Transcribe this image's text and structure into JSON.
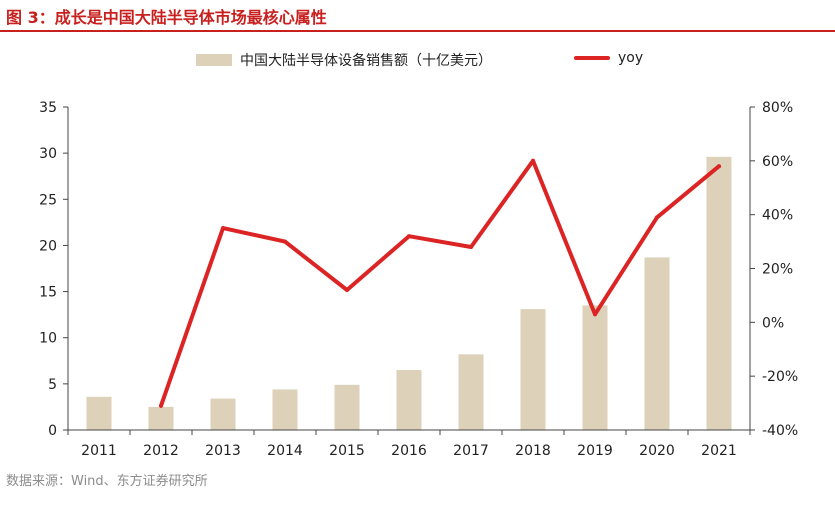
{
  "figure": {
    "title": "图 3：成长是中国大陆半导体市场最核心属性",
    "source": "数据来源：Wind、东方证券研究所"
  },
  "colors": {
    "title": "#c8201e",
    "bar": "#ddd2b9",
    "line": "#dc2424"
  },
  "chart_data": {
    "type": "bar",
    "categories": [
      "2011",
      "2012",
      "2013",
      "2014",
      "2015",
      "2016",
      "2017",
      "2018",
      "2019",
      "2020",
      "2021"
    ],
    "series": [
      {
        "name": "中国大陆半导体设备销售额（十亿美元）",
        "type": "bar",
        "axis": "left",
        "values": [
          3.6,
          2.5,
          3.4,
          4.4,
          4.9,
          6.5,
          8.2,
          13.1,
          13.5,
          18.7,
          29.6
        ]
      },
      {
        "name": "yoy",
        "type": "line",
        "axis": "right",
        "values": [
          null,
          -31,
          35,
          30,
          12,
          32,
          28,
          60,
          3,
          39,
          58
        ]
      }
    ],
    "left_axis": {
      "ylim": [
        0,
        35
      ],
      "ticks": [
        "0",
        "5",
        "10",
        "15",
        "20",
        "25",
        "30",
        "35"
      ]
    },
    "right_axis": {
      "ylim": [
        -40,
        80
      ],
      "ticks": [
        "-40%",
        "-20%",
        "0%",
        "20%",
        "40%",
        "60%",
        "80%"
      ]
    },
    "legend_position": "top-center",
    "grid": false
  }
}
